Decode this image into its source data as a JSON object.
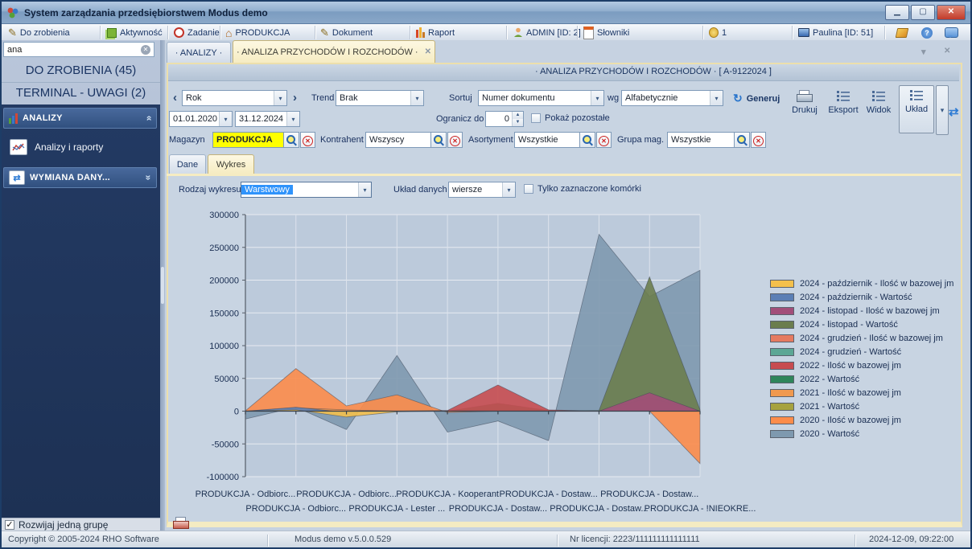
{
  "window": {
    "title": "System zarządzania przedsiębiorstwem Modus demo"
  },
  "menubar": {
    "items": [
      {
        "label": "Do zrobienia",
        "icon": "pencil-icon"
      },
      {
        "label": "Aktywność",
        "icon": "green-layers-icon"
      },
      {
        "label": "Zadanie",
        "icon": "red-ring-icon"
      },
      {
        "label": "PRODUKCJA",
        "icon": "house-icon"
      },
      {
        "label": "Dokument",
        "icon": "pencil-icon"
      },
      {
        "label": "Raport",
        "icon": "bar-chart-icon"
      },
      {
        "label": "ADMIN [ID: 2]",
        "icon": "person-icon"
      },
      {
        "label": "Słowniki",
        "icon": "calendar-icon"
      },
      {
        "label": "1",
        "icon": "coin-icon"
      },
      {
        "label": "Paulina [ID: 51]",
        "icon": "monitor-icon"
      }
    ]
  },
  "sidebar": {
    "search_value": "ana",
    "todo_header": "DO ZROBIENIA (45)",
    "terminal_header": "TERMINAL - UWAGI (2)",
    "group_analizy": "ANALIZY",
    "item_analizy_raporty": "Analizy i raporty",
    "group_wymiana": "WYMIANA DANY...",
    "footer_checkbox_label": "Rozwijaj jedną grupę"
  },
  "tabs": {
    "analizy": "· ANALIZY ·",
    "analiza": "· ANALIZA PRZYCHODÓW I ROZCHODÓW ·"
  },
  "panel": {
    "title": "· ANALIZA PRZYCHODÓW I ROZCHODÓW · [ A-9122024 ]",
    "period_value": "Rok",
    "trend_label": "Trend",
    "trend_value": "Brak",
    "sort_label": "Sortuj",
    "sort_value": "Numer dokumentu",
    "wg_label": "wg",
    "wg_value": "Alfabetycznie",
    "generate_label": "Generuj",
    "date_from": "01.01.2020",
    "date_to": "31.12.2024",
    "limit_label": "Ogranicz do",
    "limit_value": "0",
    "show_rest_label": "Pokaż pozostałe",
    "filters": [
      {
        "label": "Magazyn",
        "value": "PRODUKCJA"
      },
      {
        "label": "Kontrahent",
        "value": "Wszyscy"
      },
      {
        "label": "Asortyment",
        "value": "Wszystkie"
      },
      {
        "label": "Grupa mag.",
        "value": "Wszystkie"
      }
    ],
    "buttons": {
      "drukuj": "Drukuj",
      "eksport": "Eksport",
      "widok": "Widok",
      "uklad": "Układ"
    }
  },
  "subtabs": {
    "dane": "Dane",
    "wykres": "Wykres"
  },
  "chart_controls": {
    "type_label": "Rodzaj wykresu",
    "type_value": "Warstwowy",
    "layout_label": "Układ danych",
    "layout_value": "wiersze",
    "only_selected_label": "Tylko zaznaczone komórki"
  },
  "chart_data": {
    "type": "area",
    "layered": true,
    "ylim": [
      -100000,
      300000
    ],
    "ytick_step": 50000,
    "grid": true,
    "legend_position": "right",
    "categories": [
      "PRODUKCJA - Odbiorc...",
      "PRODUKCJA - Odbiorc...",
      "PRODUKCJA - Odbiorc...",
      "PRODUKCJA - Lester ...",
      "PRODUKCJA - Kooperant",
      "PRODUKCJA - Dostaw...",
      "PRODUKCJA - Dostaw...",
      "PRODUKCJA - Dostaw...",
      "PRODUKCJA - Dostaw...",
      "PRODUKCJA - !NIEOKRE..."
    ],
    "series": [
      {
        "name": "2024 - październik - Ilość w bazowej jm",
        "color": "#F4C04C",
        "values": [
          0,
          2000,
          -9000,
          -1000,
          0,
          0,
          0,
          0,
          0,
          0
        ]
      },
      {
        "name": "2024 - październik - Wartość",
        "color": "#5B7FB5",
        "values": [
          0,
          6000,
          -2000,
          0,
          0,
          0,
          0,
          0,
          0,
          0
        ]
      },
      {
        "name": "2024 - listopad - Ilość w bazowej jm",
        "color": "#A24E79",
        "values": [
          0,
          0,
          0,
          0,
          0,
          0,
          0,
          0,
          28000,
          0
        ]
      },
      {
        "name": "2024 - listopad - Wartość",
        "color": "#6B7D4E",
        "values": [
          0,
          0,
          0,
          0,
          0,
          0,
          0,
          1000,
          205000,
          2000
        ]
      },
      {
        "name": "2024 - grudzień - Ilość w bazowej jm",
        "color": "#E57A60",
        "values": [
          0,
          0,
          0,
          0,
          0,
          0,
          0,
          0,
          20000,
          0
        ]
      },
      {
        "name": "2024 - grudzień - Wartość",
        "color": "#5CA795",
        "values": [
          0,
          0,
          0,
          0,
          0,
          0,
          0,
          0,
          3000,
          0
        ]
      },
      {
        "name": "2022 - Ilość w bazowej jm",
        "color": "#C74C50",
        "values": [
          0,
          0,
          0,
          0,
          1000,
          40000,
          2000,
          0,
          0,
          0
        ]
      },
      {
        "name": "2022 - Wartość",
        "color": "#2F855A",
        "values": [
          0,
          0,
          0,
          0,
          0,
          12000,
          1000,
          0,
          0,
          0
        ]
      },
      {
        "name": "2021 - Ilość w bazowej jm",
        "color": "#F0994F",
        "values": [
          0,
          5000,
          2000,
          0,
          0,
          0,
          0,
          0,
          0,
          0
        ]
      },
      {
        "name": "2021 - Wartość",
        "color": "#A6A23F",
        "values": [
          0,
          1000,
          0,
          0,
          0,
          0,
          0,
          0,
          0,
          0
        ]
      },
      {
        "name": "2020 - Ilość w bazowej jm",
        "color": "#FC8C4A",
        "values": [
          500,
          65000,
          8000,
          25000,
          -2000,
          0,
          0,
          0,
          0,
          -80000
        ]
      },
      {
        "name": "2020 - Wartość",
        "color": "#7E99AF",
        "values": [
          -12000,
          6000,
          -28000,
          85000,
          -32000,
          -15000,
          -45000,
          270000,
          175000,
          215000
        ]
      }
    ]
  },
  "statusbar": {
    "copyright": "Copyright © 2005-2024 RHO Software",
    "version": "Modus demo v.5.0.0.529",
    "license": "Nr licencji: 2223/111111111111111",
    "datetime": "2024-12-09,  09:22:00"
  },
  "colors": {
    "accent_blue": "#2d7bd4",
    "highlight_yellow": "#ffff00",
    "active_tab_cream": "#f6ecc2"
  }
}
